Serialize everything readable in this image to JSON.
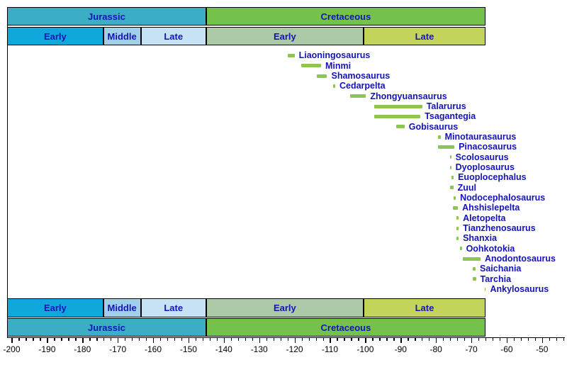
{
  "colors": {
    "bar": "#8CC551",
    "label_text": "#1414B8",
    "jurassic": "#3BAEC5",
    "cretaceous": "#74C14B",
    "early_jurassic": "#10A7DC",
    "middle_jurassic": "#9FCFE9",
    "late_jurassic": "#C6E2F5",
    "early_cretaceous": "#ACC9A7",
    "late_cretaceous": "#C4D45A",
    "axis": "#000000"
  },
  "chart_data": {
    "type": "bar",
    "subtype": "horizontal-range-timeline (geologic time scale, ankylosaur genera)",
    "unit": "millions of years (Ma)",
    "axis": {
      "min": -201.3,
      "max": -44,
      "major_tick_step": 10,
      "minor_tick_step": 2,
      "tick_labels": [
        "-200",
        "-190",
        "-180",
        "-170",
        "-160",
        "-150",
        "-140",
        "-130",
        "-120",
        "-110",
        "-100",
        "-90",
        "-80",
        "-70",
        "-60",
        "-50"
      ]
    },
    "legend": "none",
    "grid": "off",
    "periods": [
      {
        "label": "Jurassic",
        "from": -201.3,
        "to": -145,
        "color": "#3BAEC5"
      },
      {
        "label": "Cretaceous",
        "from": -145,
        "to": -66,
        "color": "#74C14B"
      }
    ],
    "epochs": [
      {
        "label": "Early",
        "period": "Jurassic",
        "from": -201.3,
        "to": -174.1,
        "color": "#10A7DC"
      },
      {
        "label": "Middle",
        "period": "Jurassic",
        "from": -174.1,
        "to": -163.5,
        "color": "#9FCFE9"
      },
      {
        "label": "Late",
        "period": "Jurassic",
        "from": -163.5,
        "to": -145,
        "color": "#C6E2F5"
      },
      {
        "label": "Early",
        "period": "Cretaceous",
        "from": -145,
        "to": -100.5,
        "color": "#ACC9A7"
      },
      {
        "label": "Late",
        "period": "Cretaceous",
        "from": -100.5,
        "to": -66,
        "color": "#C4D45A"
      }
    ],
    "series": [
      {
        "name": "Liaoningosaurus",
        "from": -122.0,
        "to": -120.0
      },
      {
        "name": "Minmi",
        "from": -118.2,
        "to": -112.5
      },
      {
        "name": "Shamosaurus",
        "from": -113.8,
        "to": -110.8
      },
      {
        "name": "Cedarpelta",
        "from": -109.0,
        "to": -108.5
      },
      {
        "name": "Zhongyuansaurus",
        "from": -104.3,
        "to": -99.8
      },
      {
        "name": "Talarurus",
        "from": -97.4,
        "to": -83.9
      },
      {
        "name": "Tsagantegia",
        "from": -97.4,
        "to": -84.4
      },
      {
        "name": "Gobisaurus",
        "from": -91.2,
        "to": -88.9
      },
      {
        "name": "Minotaurasaurus",
        "from": -79.4,
        "to": -78.7
      },
      {
        "name": "Pinacosaurus",
        "from": -79.5,
        "to": -74.8
      },
      {
        "name": "Scolosaurus",
        "from": -76.1,
        "to": -75.7
      },
      {
        "name": "Dyoplosaurus",
        "from": -76.1,
        "to": -75.7
      },
      {
        "name": "Euoplocephalus",
        "from": -75.6,
        "to": -75.0
      },
      {
        "name": "Zuul",
        "from": -76.0,
        "to": -75.1
      },
      {
        "name": "Nodocephalosaurus",
        "from": -75.0,
        "to": -74.4
      },
      {
        "name": "Ahshislepelta",
        "from": -75.3,
        "to": -73.8
      },
      {
        "name": "Aletopelta",
        "from": -74.2,
        "to": -73.6
      },
      {
        "name": "Tianzhenosaurus",
        "from": -74.2,
        "to": -73.6
      },
      {
        "name": "Shanxia",
        "from": -74.2,
        "to": -73.6
      },
      {
        "name": "Oohkotokia",
        "from": -73.2,
        "to": -72.7
      },
      {
        "name": "Anodontosaurus",
        "from": -72.4,
        "to": -67.4
      },
      {
        "name": "Saichania",
        "from": -69.7,
        "to": -68.8
      },
      {
        "name": "Tarchia",
        "from": -69.7,
        "to": -68.7
      },
      {
        "name": "Ankylosaurus",
        "from": -66.3,
        "to": -65.9
      }
    ]
  }
}
